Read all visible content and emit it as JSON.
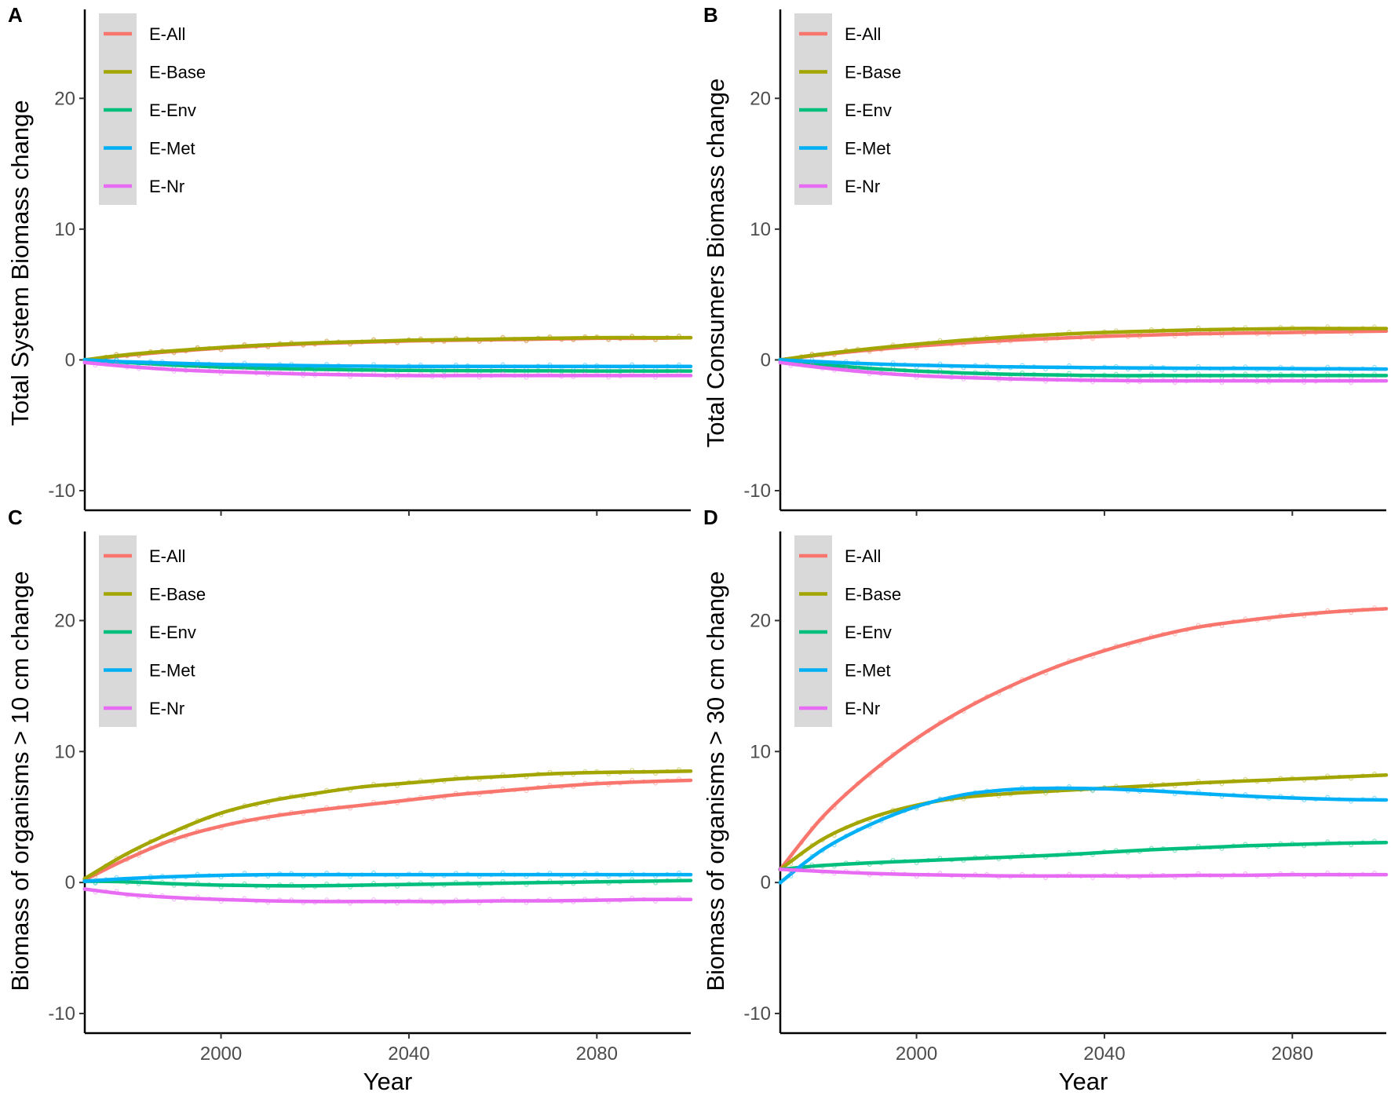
{
  "chart_data": [
    {
      "panel": "A",
      "type": "line",
      "xlabel": "Year",
      "ylabel": "Total System Biomass change",
      "xlim": [
        1971,
        2100
      ],
      "ylim": [
        -11.5,
        26.8
      ],
      "xticks": [
        2000,
        2040,
        2080
      ],
      "yticks": [
        -10,
        0,
        10,
        20
      ],
      "legend": {
        "position": "top-left",
        "entries": [
          "E-All",
          "E-Base",
          "E-Env",
          "E-Met",
          "E-Nr"
        ]
      },
      "x": [
        1971,
        1980,
        1990,
        2000,
        2010,
        2020,
        2030,
        2040,
        2050,
        2060,
        2070,
        2080,
        2090,
        2100
      ],
      "series": [
        {
          "name": "E-All",
          "color": "#F8766D",
          "values": [
            0,
            0.35,
            0.65,
            0.9,
            1.1,
            1.25,
            1.35,
            1.45,
            1.5,
            1.55,
            1.6,
            1.65,
            1.65,
            1.7
          ]
        },
        {
          "name": "E-Base",
          "color": "#A3A500",
          "values": [
            0,
            0.4,
            0.7,
            0.95,
            1.15,
            1.3,
            1.4,
            1.5,
            1.55,
            1.6,
            1.65,
            1.7,
            1.7,
            1.7
          ]
        },
        {
          "name": "E-Env",
          "color": "#00BF7D",
          "values": [
            0,
            -0.2,
            -0.4,
            -0.55,
            -0.65,
            -0.72,
            -0.77,
            -0.8,
            -0.82,
            -0.83,
            -0.84,
            -0.85,
            -0.85,
            -0.85
          ]
        },
        {
          "name": "E-Met",
          "color": "#00B0F6",
          "values": [
            0,
            -0.15,
            -0.25,
            -0.35,
            -0.4,
            -0.45,
            -0.48,
            -0.5,
            -0.5,
            -0.5,
            -0.5,
            -0.5,
            -0.5,
            -0.5
          ]
        },
        {
          "name": "E-Nr",
          "color": "#E76BF3",
          "values": [
            -0.2,
            -0.5,
            -0.75,
            -0.9,
            -1.0,
            -1.1,
            -1.15,
            -1.2,
            -1.2,
            -1.2,
            -1.2,
            -1.2,
            -1.2,
            -1.2
          ]
        }
      ]
    },
    {
      "panel": "B",
      "type": "line",
      "xlabel": "Year",
      "ylabel": "Total Consumers Biomass change",
      "xlim": [
        1971,
        2100
      ],
      "ylim": [
        -11.5,
        26.8
      ],
      "xticks": [
        2000,
        2040,
        2080
      ],
      "yticks": [
        -10,
        0,
        10,
        20
      ],
      "legend": {
        "position": "top-left",
        "entries": [
          "E-All",
          "E-Base",
          "E-Env",
          "E-Met",
          "E-Nr"
        ]
      },
      "x": [
        1971,
        1980,
        1990,
        2000,
        2010,
        2020,
        2030,
        2040,
        2050,
        2060,
        2070,
        2080,
        2090,
        2100
      ],
      "series": [
        {
          "name": "E-All",
          "color": "#F8766D",
          "values": [
            0,
            0.4,
            0.75,
            1.05,
            1.3,
            1.5,
            1.65,
            1.8,
            1.9,
            2.0,
            2.05,
            2.1,
            2.15,
            2.2
          ]
        },
        {
          "name": "E-Base",
          "color": "#A3A500",
          "values": [
            0,
            0.45,
            0.85,
            1.2,
            1.5,
            1.75,
            1.95,
            2.1,
            2.2,
            2.3,
            2.35,
            2.4,
            2.4,
            2.4
          ]
        },
        {
          "name": "E-Env",
          "color": "#00BF7D",
          "values": [
            0,
            -0.35,
            -0.65,
            -0.85,
            -1.0,
            -1.1,
            -1.15,
            -1.2,
            -1.2,
            -1.2,
            -1.2,
            -1.2,
            -1.2,
            -1.2
          ]
        },
        {
          "name": "E-Met",
          "color": "#00B0F6",
          "values": [
            0,
            -0.15,
            -0.3,
            -0.4,
            -0.48,
            -0.53,
            -0.57,
            -0.6,
            -0.62,
            -0.64,
            -0.65,
            -0.67,
            -0.68,
            -0.7
          ]
        },
        {
          "name": "E-Nr",
          "color": "#E76BF3",
          "values": [
            -0.2,
            -0.6,
            -0.95,
            -1.2,
            -1.35,
            -1.45,
            -1.52,
            -1.57,
            -1.6,
            -1.6,
            -1.6,
            -1.6,
            -1.6,
            -1.6
          ]
        }
      ]
    },
    {
      "panel": "C",
      "type": "line",
      "xlabel": "Year",
      "ylabel": "Biomass of organisms > 10 cm change",
      "xlim": [
        1971,
        2100
      ],
      "ylim": [
        -11.5,
        26.8
      ],
      "xticks": [
        2000,
        2040,
        2080
      ],
      "yticks": [
        -10,
        0,
        10,
        20
      ],
      "legend": {
        "position": "top-left",
        "entries": [
          "E-All",
          "E-Base",
          "E-Env",
          "E-Met",
          "E-Nr"
        ]
      },
      "x": [
        1971,
        1980,
        1990,
        2000,
        2010,
        2020,
        2030,
        2040,
        2050,
        2060,
        2070,
        2080,
        2090,
        2100
      ],
      "series": [
        {
          "name": "E-All",
          "color": "#F8766D",
          "values": [
            0.2,
            1.8,
            3.3,
            4.3,
            5.0,
            5.5,
            5.9,
            6.3,
            6.7,
            7.0,
            7.3,
            7.55,
            7.7,
            7.8
          ]
        },
        {
          "name": "E-Base",
          "color": "#A3A500",
          "values": [
            0.3,
            2.2,
            3.9,
            5.3,
            6.2,
            6.8,
            7.3,
            7.6,
            7.9,
            8.1,
            8.3,
            8.4,
            8.45,
            8.5
          ]
        },
        {
          "name": "E-Env",
          "color": "#00BF7D",
          "values": [
            0.1,
            0.05,
            -0.1,
            -0.2,
            -0.25,
            -0.25,
            -0.2,
            -0.15,
            -0.1,
            -0.05,
            0.0,
            0.05,
            0.1,
            0.15
          ]
        },
        {
          "name": "E-Met",
          "color": "#00B0F6",
          "values": [
            0.1,
            0.3,
            0.45,
            0.55,
            0.6,
            0.6,
            0.6,
            0.6,
            0.6,
            0.6,
            0.6,
            0.6,
            0.6,
            0.6
          ]
        },
        {
          "name": "E-Nr",
          "color": "#E76BF3",
          "values": [
            -0.5,
            -0.9,
            -1.15,
            -1.3,
            -1.4,
            -1.45,
            -1.45,
            -1.45,
            -1.45,
            -1.4,
            -1.4,
            -1.35,
            -1.3,
            -1.3
          ]
        }
      ]
    },
    {
      "panel": "D",
      "type": "line",
      "xlabel": "Year",
      "ylabel": "Biomass of organisms > 30 cm change",
      "xlim": [
        1971,
        2100
      ],
      "ylim": [
        -11.5,
        26.8
      ],
      "xticks": [
        2000,
        2040,
        2080
      ],
      "yticks": [
        -10,
        0,
        10,
        20
      ],
      "legend": {
        "position": "top-left",
        "entries": [
          "E-All",
          "E-Base",
          "E-Env",
          "E-Met",
          "E-Nr"
        ]
      },
      "x": [
        1971,
        1980,
        1990,
        2000,
        2010,
        2020,
        2030,
        2040,
        2050,
        2060,
        2070,
        2080,
        2090,
        2100
      ],
      "series": [
        {
          "name": "E-All",
          "color": "#F8766D",
          "values": [
            1.0,
            5.0,
            8.3,
            11.0,
            13.2,
            15.0,
            16.5,
            17.7,
            18.7,
            19.5,
            20.0,
            20.4,
            20.7,
            20.9
          ]
        },
        {
          "name": "E-Base",
          "color": "#A3A500",
          "values": [
            1.0,
            3.3,
            4.9,
            5.9,
            6.5,
            6.8,
            7.0,
            7.2,
            7.4,
            7.6,
            7.75,
            7.9,
            8.05,
            8.2
          ]
        },
        {
          "name": "E-Env",
          "color": "#00BF7D",
          "values": [
            1.0,
            1.3,
            1.5,
            1.65,
            1.8,
            1.95,
            2.1,
            2.3,
            2.5,
            2.65,
            2.8,
            2.9,
            3.0,
            3.05
          ]
        },
        {
          "name": "E-Met",
          "color": "#00B0F6",
          "values": [
            0.0,
            2.5,
            4.4,
            5.8,
            6.7,
            7.1,
            7.2,
            7.15,
            7.0,
            6.8,
            6.6,
            6.45,
            6.35,
            6.3
          ]
        },
        {
          "name": "E-Nr",
          "color": "#E76BF3",
          "values": [
            1.0,
            0.85,
            0.7,
            0.6,
            0.55,
            0.5,
            0.5,
            0.5,
            0.5,
            0.55,
            0.55,
            0.6,
            0.6,
            0.6
          ]
        }
      ]
    }
  ]
}
